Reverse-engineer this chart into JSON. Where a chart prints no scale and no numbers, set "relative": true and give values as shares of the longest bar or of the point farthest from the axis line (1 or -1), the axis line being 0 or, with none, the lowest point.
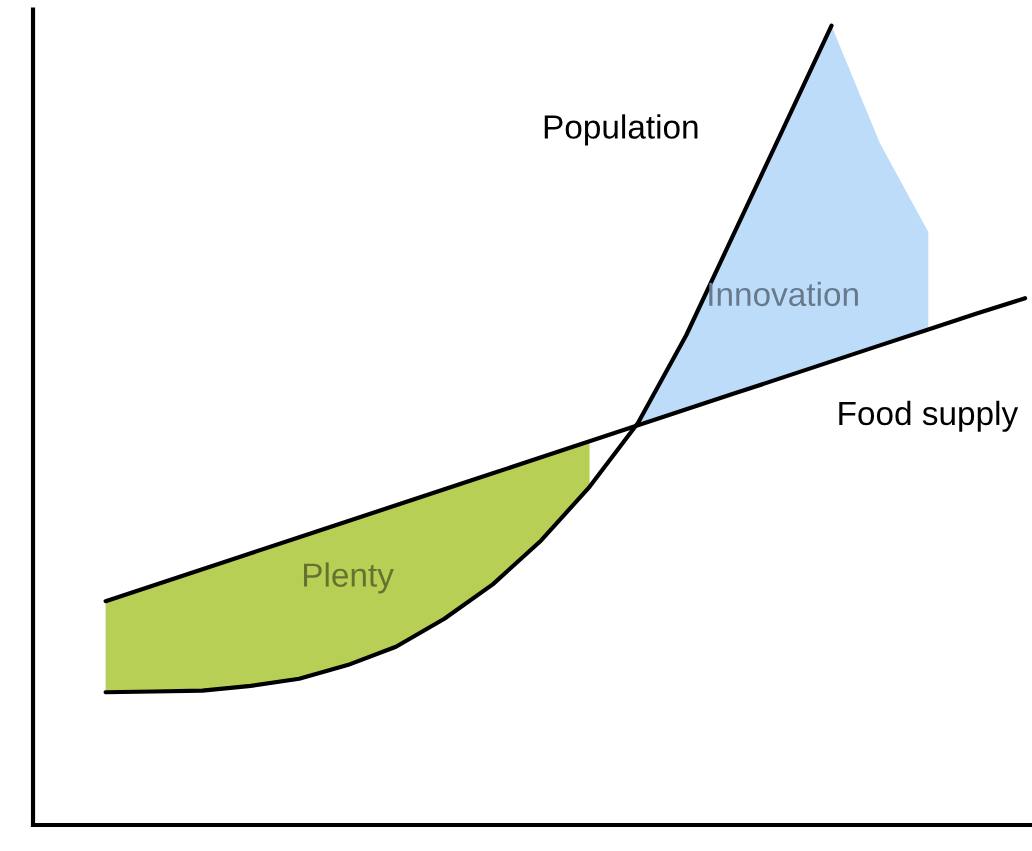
{
  "chart_data": {
    "type": "line",
    "relative": true,
    "categories": [
      null,
      null,
      null,
      null,
      null,
      null,
      null,
      null,
      null,
      null,
      null,
      null,
      null,
      null,
      null,
      null,
      null,
      null,
      null,
      null
    ],
    "series": [
      {
        "name": "Plenty",
        "type": "area",
        "color": "#b8cf55",
        "values": [
          0.28,
          0.3,
          0.32,
          0.34,
          0.36,
          0.38,
          0.4,
          0.42,
          0.44,
          0.46,
          0.48,
          null,
          null,
          null,
          null,
          null,
          null,
          null,
          null,
          null
        ]
      },
      {
        "name": "Innovation",
        "type": "area",
        "color": "#bcdcfa",
        "values": [
          null,
          null,
          null,
          null,
          null,
          null,
          null,
          null,
          null,
          null,
          null,
          0.503,
          0.613,
          0.742,
          0.871,
          1.0,
          0.853,
          0.742,
          null,
          null
        ]
      },
      {
        "name": "Population",
        "color": "#000000",
        "values": [
          0.166,
          0.167,
          0.168,
          0.174,
          0.183,
          0.2,
          0.223,
          0.258,
          0.301,
          0.356,
          0.423,
          0.503,
          0.613,
          0.742,
          0.871,
          1.0,
          null,
          null,
          null,
          null
        ]
      },
      {
        "name": "Food supply",
        "color": "#000000",
        "values": [
          0.28,
          0.3,
          0.32,
          0.34,
          0.36,
          0.38,
          0.4,
          0.42,
          0.44,
          0.46,
          0.48,
          0.5,
          0.52,
          0.54,
          0.56,
          0.58,
          0.6,
          0.62,
          0.64,
          0.659
        ]
      }
    ]
  }
}
